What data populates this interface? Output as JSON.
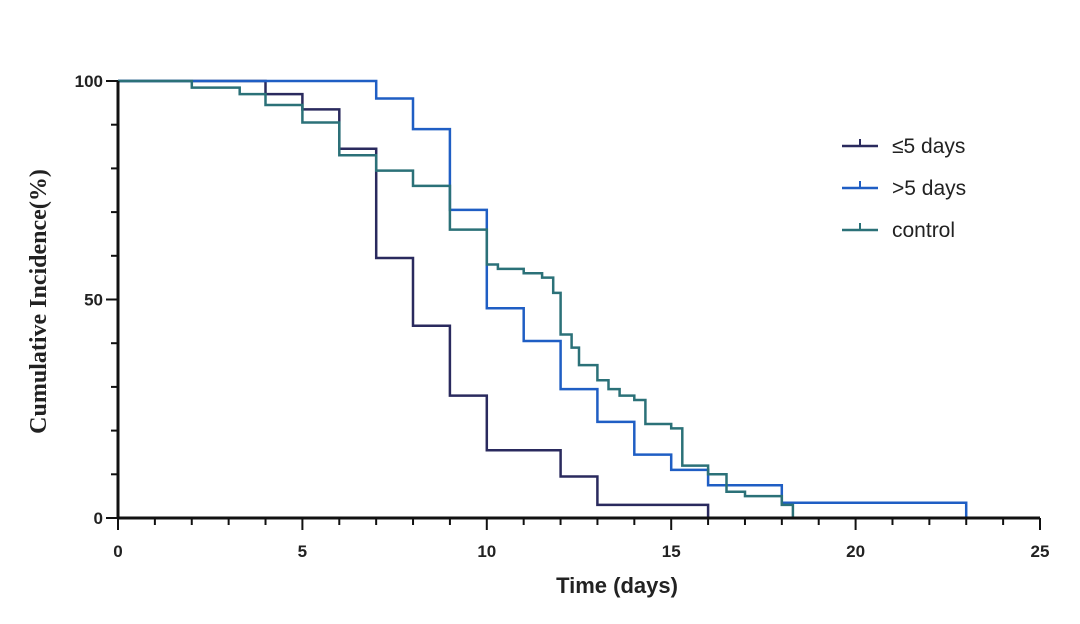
{
  "chart_data": {
    "type": "line",
    "step": true,
    "title": "",
    "xlabel": "Time (days)",
    "ylabel": "Cumulative Incidence(%)",
    "xlim": [
      0,
      25
    ],
    "ylim": [
      0,
      100
    ],
    "x_ticks": [
      0,
      5,
      10,
      15,
      20,
      25
    ],
    "y_ticks": [
      0,
      50,
      100
    ],
    "x_minor_step": 1,
    "y_minor_step": 10,
    "grid": false,
    "legend_position": "top-right",
    "series": [
      {
        "name": "≤5 days",
        "color": "#2a2a5e",
        "x": [
          0,
          4,
          5,
          6,
          7,
          8,
          9,
          10,
          12,
          13,
          16
        ],
        "y": [
          100,
          97,
          93.5,
          84.5,
          59.5,
          44,
          28,
          15.5,
          9.5,
          3,
          0
        ]
      },
      {
        "name": ">5 days",
        "color": "#1f5ec4",
        "x": [
          0,
          7,
          8,
          9,
          10,
          11,
          12,
          13,
          14,
          15,
          16,
          17,
          18,
          23
        ],
        "y": [
          100,
          96,
          89,
          70.5,
          48,
          40.5,
          29.5,
          22,
          14.5,
          11,
          7.5,
          7.5,
          3.5,
          0
        ]
      },
      {
        "name": "control",
        "color": "#2b7178",
        "x": [
          0,
          2,
          3.3,
          4,
          5,
          6,
          7,
          8,
          9,
          10,
          10.3,
          11,
          11.5,
          11.8,
          12,
          12.3,
          12.5,
          13,
          13.3,
          13.6,
          14,
          14.3,
          15,
          15.3,
          16,
          16.5,
          17,
          18,
          18.3
        ],
        "y": [
          100,
          98.5,
          97,
          94.5,
          90.5,
          83,
          79.5,
          76,
          66,
          58,
          57,
          56,
          55,
          51.5,
          42,
          39,
          35,
          31.5,
          29.5,
          28,
          27,
          21.5,
          20.5,
          12,
          10,
          6,
          5,
          3,
          0
        ]
      }
    ]
  }
}
